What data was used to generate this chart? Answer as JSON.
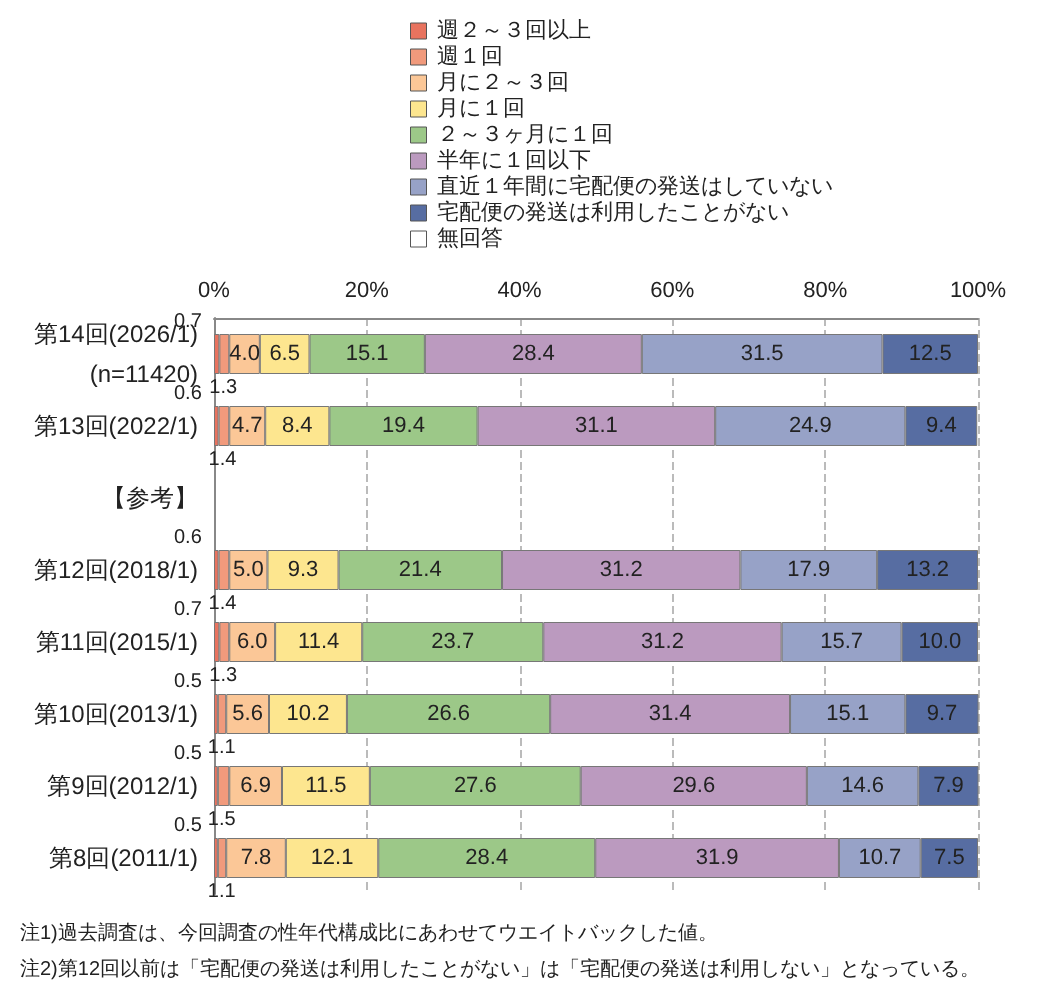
{
  "chart_data": {
    "type": "bar",
    "orientation": "horizontal",
    "stacked": true,
    "grid": "x",
    "legend": "top",
    "categories": [
      "第14回(2026/1)\n(n=11420)",
      "第13回(2022/1)",
      "【参考】",
      "第12回(2018/1)",
      "第11回(2015/1)",
      "第10回(2013/1)",
      "第9回(2012/1)",
      "第8回(2011/1)"
    ],
    "xlim": [
      0,
      100
    ],
    "xticks": [
      {
        "value": 0,
        "label": "0%"
      },
      {
        "value": 20,
        "label": "20%"
      },
      {
        "value": 40,
        "label": "40%"
      },
      {
        "value": 60,
        "label": "60%"
      },
      {
        "value": 80,
        "label": "80%"
      },
      {
        "value": 100,
        "label": "100%"
      }
    ],
    "series": [
      {
        "name": "週２～３回以上",
        "color": "#e8735f",
        "values": [
          0.7,
          0.6,
          null,
          0.6,
          0.7,
          0.5,
          0.5,
          0.5
        ],
        "value_labels": [
          "0.7",
          "0.6",
          null,
          "0.6",
          "0.7",
          "0.5",
          "0.5",
          "0.5"
        ]
      },
      {
        "name": "週１回",
        "color": "#f19a7c",
        "values": [
          1.3,
          1.4,
          null,
          1.4,
          1.3,
          1.1,
          1.5,
          1.1
        ],
        "value_labels": [
          "1.3",
          "1.4",
          null,
          "1.4",
          "1.3",
          "1.1",
          "1.5",
          "1.1"
        ]
      },
      {
        "name": "月に２～３回",
        "color": "#fbc797",
        "values": [
          4.0,
          4.7,
          null,
          5.0,
          6.0,
          5.6,
          6.9,
          7.8
        ],
        "value_labels": [
          "4.0",
          "4.7",
          null,
          "5.0",
          "6.0",
          "5.6",
          "6.9",
          "7.8"
        ]
      },
      {
        "name": "月に１回",
        "color": "#fde68f",
        "values": [
          6.5,
          8.4,
          null,
          9.3,
          11.4,
          10.2,
          11.5,
          12.1
        ],
        "value_labels": [
          "6.5",
          "8.4",
          null,
          "9.3",
          "11.4",
          "10.2",
          "11.5",
          "12.1"
        ]
      },
      {
        "name": "２～３ヶ月に１回",
        "color": "#9cc888",
        "values": [
          15.1,
          19.4,
          null,
          21.4,
          23.7,
          26.6,
          27.6,
          28.4
        ],
        "value_labels": [
          "15.1",
          "19.4",
          null,
          "21.4",
          "23.7",
          "26.6",
          "27.6",
          "28.4"
        ]
      },
      {
        "name": "半年に１回以下",
        "color": "#bb9abf",
        "values": [
          28.4,
          31.1,
          null,
          31.2,
          31.2,
          31.4,
          29.6,
          31.9
        ],
        "value_labels": [
          "28.4",
          "31.1",
          null,
          "31.2",
          "31.2",
          "31.4",
          "29.6",
          "31.9"
        ]
      },
      {
        "name": "直近１年間に宅配便の発送はしていない",
        "color": "#97a2c7",
        "values": [
          31.5,
          24.9,
          null,
          17.9,
          15.7,
          15.1,
          14.6,
          10.7
        ],
        "value_labels": [
          "31.5",
          "24.9",
          null,
          "17.9",
          "15.7",
          "15.1",
          "14.6",
          "10.7"
        ]
      },
      {
        "name": "宅配便の発送は利用したことがない",
        "color": "#576da2",
        "values": [
          12.5,
          9.4,
          null,
          13.2,
          10.0,
          9.7,
          7.9,
          7.5
        ],
        "value_labels": [
          "12.5",
          "9.4",
          null,
          "13.2",
          "10.0",
          "9.7",
          "7.9",
          "7.5"
        ]
      },
      {
        "name": "無回答",
        "color": "#ffffff",
        "values": [
          null,
          null,
          null,
          null,
          null,
          null,
          null,
          null
        ]
      }
    ],
    "annotations": [
      "注1)過去調査は、今回調査の性年代構成比にあわせてウエイトバックした値。",
      "注2)第12回以前は「宅配便の発送は利用したことがない」は「宅配便の発送は利用しない」となっている。"
    ]
  }
}
